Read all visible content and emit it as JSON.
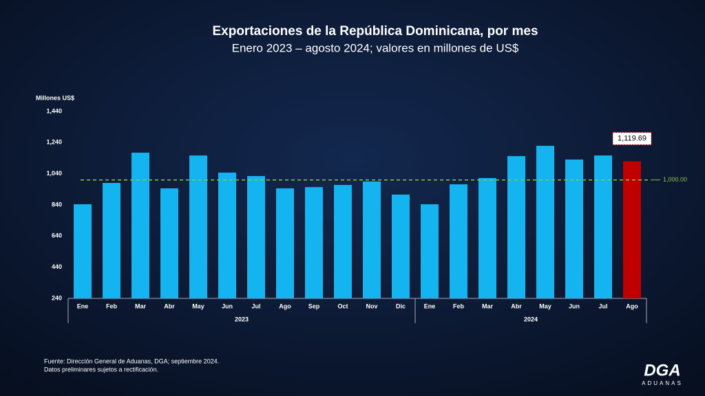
{
  "chart_data": {
    "type": "bar",
    "title": "Exportaciones de la República Dominicana, por mes",
    "subtitle": "Enero 2023 – agosto 2024;  valores en millones de US$",
    "ylabel": "Millones US$",
    "groups": [
      {
        "name": "2023",
        "categories": [
          "Ene",
          "Feb",
          "Mar",
          "Abr",
          "May",
          "Jun",
          "Jul",
          "Ago",
          "Sep",
          "Oct",
          "Nov",
          "Dic"
        ],
        "values": [
          844,
          981,
          1175,
          946,
          1157,
          1047,
          1025,
          946,
          954,
          968,
          990,
          906
        ],
        "colors": [
          "#14b4f0",
          "#14b4f0",
          "#14b4f0",
          "#14b4f0",
          "#14b4f0",
          "#14b4f0",
          "#14b4f0",
          "#14b4f0",
          "#14b4f0",
          "#14b4f0",
          "#14b4f0",
          "#14b4f0"
        ],
        "value_labels": [
          null,
          null,
          null,
          null,
          null,
          null,
          null,
          null,
          null,
          null,
          null,
          null
        ]
      },
      {
        "name": "2024",
        "categories": [
          "Ene",
          "Feb",
          "Mar",
          "Abr",
          "May",
          "Jun",
          "Jul",
          "Ago"
        ],
        "values": [
          844,
          972,
          1012,
          1153,
          1219,
          1131,
          1157,
          1119.69
        ],
        "colors": [
          "#14b4f0",
          "#14b4f0",
          "#14b4f0",
          "#14b4f0",
          "#14b4f0",
          "#14b4f0",
          "#14b4f0",
          "#c00000"
        ],
        "value_labels": [
          null,
          null,
          null,
          null,
          null,
          null,
          null,
          "1,119.69"
        ]
      }
    ],
    "ylim": [
      240,
      1440
    ],
    "yticks": [
      240,
      440,
      640,
      840,
      {
        "value": 1040,
        "label": "1,040"
      },
      {
        "value": 1240,
        "label": "1,240"
      },
      {
        "value": 1440,
        "label": "1,440"
      }
    ],
    "reference_line": {
      "value": 1000,
      "label": "1,000.00",
      "color": "#8cc63f"
    },
    "source": "Fuente: Dirección General de Aduanas, DGA; septiembre 2024.",
    "note": "Datos preliminares sujetos a rectificación.",
    "logo": "DGA",
    "logo_sub": "ADUANAS"
  }
}
